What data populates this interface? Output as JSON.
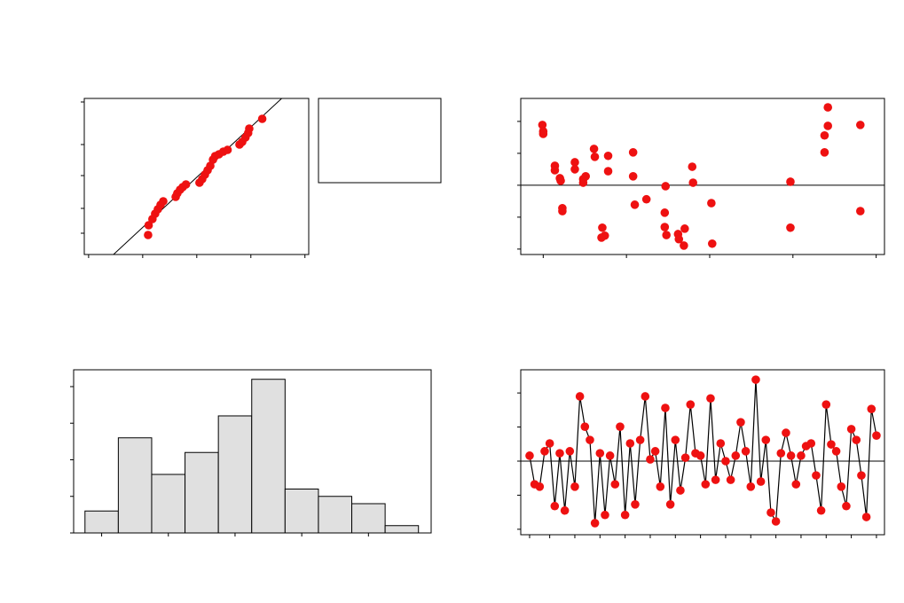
{
  "chart_data": [
    {
      "type": "scatter",
      "color": "#ee1111",
      "line_color": "#000000",
      "x": [
        -0.9,
        -0.89,
        -0.82,
        -0.77,
        -0.72,
        -0.67,
        -0.62,
        -0.39,
        -0.36,
        -0.31,
        -0.26,
        -0.2,
        0.05,
        0.1,
        0.15,
        0.2,
        0.25,
        0.3,
        0.34,
        0.41,
        0.49,
        0.57,
        0.79,
        0.84,
        0.9,
        0.95,
        0.97,
        1.21
      ],
      "y": [
        22,
        33,
        40,
        46,
        51,
        56,
        60,
        65,
        69,
        73,
        76,
        79,
        81,
        85,
        90,
        95,
        100,
        107,
        111,
        113,
        116,
        118,
        124,
        127,
        132,
        137,
        142,
        153
      ],
      "fit_line": {
        "x": [
          -1.54,
          1.57
        ],
        "y": [
          0,
          176
        ]
      },
      "xlim": [
        -2.08,
        2.07
      ],
      "ylim": [
        0,
        176
      ],
      "xticks": [
        -2,
        -1,
        0,
        1,
        2
      ],
      "yticks": [
        24,
        52,
        89,
        124,
        172
      ]
    },
    {
      "type": "scatter",
      "color": "#ee1111",
      "hline": 0,
      "x": [
        0.99,
        1.0,
        1.0,
        1.14,
        1.14,
        1.2,
        1.21,
        1.23,
        1.23,
        1.38,
        1.38,
        1.48,
        1.48,
        1.51,
        1.61,
        1.62,
        1.78,
        1.78,
        1.71,
        1.74,
        1.7,
        2.08,
        2.08,
        2.1,
        2.24,
        2.46,
        2.47,
        2.46,
        2.48,
        2.62,
        2.63,
        2.7,
        2.69,
        2.79,
        2.8,
        3.02,
        3.03,
        3.97,
        3.97,
        4.38,
        4.38,
        4.42,
        4.42,
        4.81,
        4.81
      ],
      "y": [
        1.89,
        1.69,
        1.61,
        0.61,
        0.47,
        0.22,
        0.14,
        -0.72,
        -0.81,
        0.72,
        0.5,
        0.19,
        0.08,
        0.28,
        1.14,
        0.89,
        0.92,
        0.44,
        -1.33,
        -1.58,
        -1.64,
        1.03,
        0.28,
        -0.61,
        -0.44,
        -0.86,
        -0.03,
        -1.31,
        -1.56,
        -1.53,
        -1.69,
        -1.36,
        -1.89,
        0.58,
        0.08,
        -0.56,
        -1.83,
        -1.33,
        0.11,
        1.03,
        1.56,
        1.86,
        2.44,
        1.89,
        -0.81
      ],
      "xlim": [
        0.73,
        5.1
      ],
      "ylim": [
        -2.17,
        2.72
      ],
      "xticks": [
        1,
        2,
        3,
        4,
        5
      ],
      "yticks": [
        -2,
        -1,
        0,
        1,
        2
      ]
    },
    {
      "type": "histogram",
      "color": "#e0e0e0",
      "bins": [
        -2.25,
        -1.75,
        -1.25,
        -0.75,
        -0.25,
        0.25,
        0.75,
        1.25,
        1.75,
        2.25,
        2.75
      ],
      "counts": [
        3,
        13,
        8,
        11,
        16,
        21,
        6,
        5,
        4,
        1
      ],
      "xlim": [
        -2.42,
        2.94
      ],
      "ylim": [
        0,
        22.3
      ],
      "xticks": [
        -2,
        -1,
        0,
        1,
        2
      ],
      "yticks": [
        0,
        5,
        10,
        15,
        20
      ]
    },
    {
      "type": "line",
      "color": "#ee1111",
      "line_color": "#000000",
      "hline": 0,
      "x": [
        1,
        2,
        3,
        4,
        5,
        6,
        7,
        8,
        9,
        10,
        11,
        12,
        13,
        14,
        15,
        16,
        17,
        18,
        19,
        20,
        21,
        22,
        23,
        24,
        25,
        26,
        27,
        28,
        29,
        30,
        31,
        32,
        33,
        34,
        35,
        36,
        37,
        38,
        39,
        40,
        41,
        42,
        43,
        44,
        45,
        46,
        47,
        48,
        49,
        50,
        51,
        52,
        53,
        54,
        55,
        56,
        57,
        58,
        59,
        60,
        61,
        62,
        63,
        64,
        65,
        66,
        67,
        68,
        69,
        70
      ],
      "values": [
        0.16,
        -0.68,
        -0.75,
        0.29,
        0.52,
        -1.32,
        0.23,
        -1.45,
        0.29,
        -0.75,
        1.9,
        1.01,
        0.62,
        -1.82,
        0.23,
        -1.58,
        0.16,
        -0.68,
        1.01,
        -1.58,
        0.52,
        -1.27,
        0.62,
        1.9,
        0.05,
        0.29,
        -0.75,
        1.56,
        -1.27,
        0.62,
        -0.86,
        0.1,
        1.66,
        0.23,
        0.16,
        -0.68,
        1.84,
        -0.55,
        0.52,
        0,
        -0.55,
        0.16,
        1.14,
        0.29,
        -0.75,
        2.39,
        -0.6,
        0.62,
        -1.51,
        -1.77,
        0.23,
        0.83,
        0.16,
        -0.68,
        0.16,
        0.44,
        0.52,
        -0.42,
        -1.45,
        1.66,
        0.49,
        0.29,
        -0.75,
        -1.32,
        0.94,
        0.62,
        -0.42,
        -1.64,
        1.53,
        0.75
      ],
      "xlim": [
        -0.76,
        71.6
      ],
      "ylim": [
        -2.16,
        2.68
      ],
      "xticks": [
        1,
        5,
        10,
        15,
        20,
        25,
        30,
        35,
        40,
        45,
        50,
        55,
        60,
        65,
        70
      ],
      "yticks": [
        -2,
        -1,
        0,
        1,
        2
      ]
    }
  ]
}
